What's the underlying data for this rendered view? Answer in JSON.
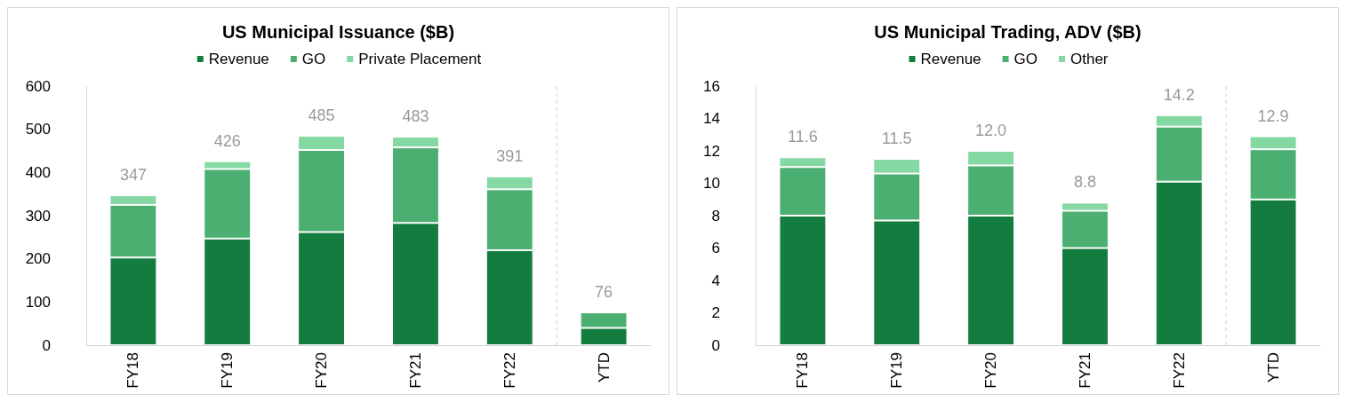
{
  "chart_data": [
    {
      "type": "bar",
      "title": "US Municipal Issuance ($B)",
      "categories": [
        "FY18",
        "FY19",
        "FY20",
        "FY21",
        "FY22",
        "YTD"
      ],
      "stacked": true,
      "series": [
        {
          "name": "Revenue",
          "color": "#147c3e",
          "values": [
            203,
            247,
            262,
            283,
            220,
            40
          ]
        },
        {
          "name": "GO",
          "color": "#4caf72",
          "values": [
            122,
            161,
            190,
            175,
            141,
            36
          ]
        },
        {
          "name": "Private Placement",
          "color": "#84d8a2",
          "values": [
            22,
            18,
            33,
            25,
            30,
            null
          ]
        }
      ],
      "totals": [
        "347",
        "426",
        "485",
        "483",
        "391",
        "76"
      ],
      "ylim": [
        0,
        600
      ],
      "yticks": [
        0,
        100,
        200,
        300,
        400,
        500,
        600
      ],
      "legend": "top"
    },
    {
      "type": "bar",
      "title": "US Municipal Trading, ADV ($B)",
      "categories": [
        "FY18",
        "FY19",
        "FY20",
        "FY21",
        "FY22",
        "YTD"
      ],
      "stacked": true,
      "series": [
        {
          "name": "Revenue",
          "color": "#147c3e",
          "values": [
            8.0,
            7.7,
            8.0,
            6.0,
            10.1,
            9.0
          ]
        },
        {
          "name": "GO",
          "color": "#4caf72",
          "values": [
            3.0,
            2.9,
            3.1,
            2.3,
            3.4,
            3.1
          ]
        },
        {
          "name": "Other",
          "color": "#84d8a2",
          "values": [
            0.6,
            0.9,
            0.9,
            0.5,
            0.7,
            0.8
          ]
        }
      ],
      "totals": [
        "11.6",
        "11.5",
        "12.0",
        "8.8",
        "14.2",
        "12.9"
      ],
      "ylim": [
        0,
        16
      ],
      "yticks": [
        0,
        2,
        4,
        6,
        8,
        10,
        12,
        14,
        16
      ],
      "legend": "top"
    }
  ]
}
